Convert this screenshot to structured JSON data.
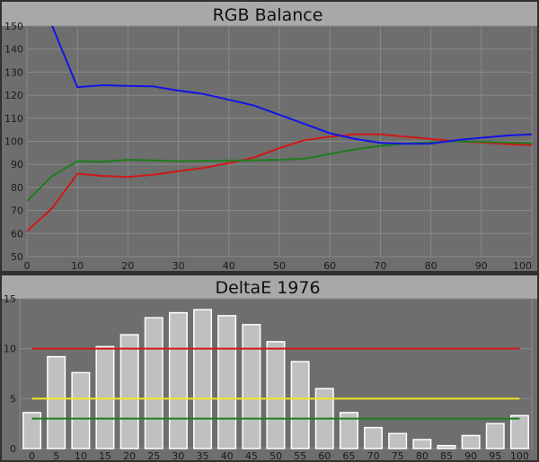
{
  "colors": {
    "panel_bg": "#6e6e6e",
    "title_bar": "#a8a8a8",
    "grid": "#8a8a8a",
    "red": "#d01818",
    "green": "#1e7d1e",
    "blue": "#1414e6",
    "yellow": "#f0e628",
    "bar_fill": "#c0c0c0",
    "bar_stroke": "#ffffff"
  },
  "chart_data": [
    {
      "type": "line",
      "title": "RGB Balance",
      "xlim": [
        0,
        100
      ],
      "ylim": [
        50,
        150
      ],
      "x_ticks": [
        "0",
        "10",
        "20",
        "30",
        "40",
        "50",
        "60",
        "70",
        "80",
        "90",
        "100"
      ],
      "y_ticks": [
        "50",
        "60",
        "70",
        "80",
        "90",
        "100",
        "110",
        "120",
        "130",
        "140",
        "150"
      ],
      "grid": true,
      "x": [
        0,
        5,
        10,
        15,
        20,
        25,
        30,
        35,
        40,
        45,
        50,
        55,
        60,
        65,
        70,
        75,
        80,
        85,
        90,
        95,
        100
      ],
      "series": [
        {
          "key": "red",
          "values": [
            61,
            71,
            86,
            85,
            84.5,
            85.5,
            87,
            88.5,
            90.5,
            93,
            97,
            100.5,
            102,
            103,
            103,
            102,
            101,
            100,
            99.5,
            98.8,
            98.3
          ]
        },
        {
          "key": "green",
          "values": [
            74,
            85,
            91.3,
            91.2,
            92,
            91.7,
            91.4,
            91.5,
            91.6,
            91.8,
            91.9,
            92.5,
            94.5,
            96.5,
            98,
            99,
            99.6,
            100,
            99.8,
            99.5,
            99.2
          ]
        },
        {
          "key": "blue",
          "values": [
            null,
            150,
            123.5,
            124.3,
            124,
            123.8,
            122,
            120.5,
            118,
            115.5,
            111.5,
            107.5,
            103.5,
            101,
            99.3,
            98.9,
            99,
            100.5,
            101.5,
            102.5,
            103
          ]
        }
      ]
    },
    {
      "type": "bar",
      "title": "DeltaE 1976",
      "categories": [
        "0",
        "5",
        "10",
        "15",
        "20",
        "25",
        "30",
        "35",
        "40",
        "45",
        "50",
        "55",
        "60",
        "65",
        "70",
        "75",
        "80",
        "85",
        "90",
        "95",
        "100"
      ],
      "values": [
        3.6,
        9.2,
        7.6,
        10.2,
        11.4,
        13.1,
        13.6,
        13.9,
        13.3,
        12.4,
        10.7,
        8.7,
        6.0,
        3.6,
        2.1,
        1.5,
        0.9,
        0.3,
        1.3,
        2.5,
        3.3
      ],
      "ylim": [
        0,
        15
      ],
      "y_ticks": [
        "0",
        "5",
        "10",
        "15"
      ],
      "reference_lines": [
        {
          "key": "red",
          "value": 10
        },
        {
          "key": "yellow",
          "value": 5
        },
        {
          "key": "green",
          "value": 3
        }
      ]
    }
  ]
}
